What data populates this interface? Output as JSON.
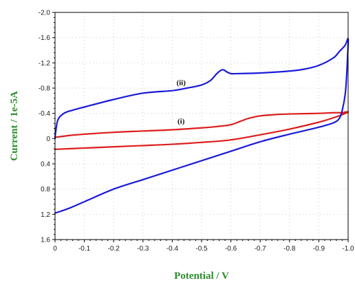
{
  "chart_data": {
    "type": "line",
    "xlabel": "Potential / V",
    "ylabel": "Current / 1e-5A",
    "xlim": [
      0,
      -1.0
    ],
    "ylim": [
      1.6,
      -2.0
    ],
    "x_ticks": [
      "0",
      "-0.1",
      "-0.2",
      "-0.3",
      "-0.4",
      "-0.5",
      "-0.6",
      "-0.7",
      "-0.8",
      "-0.9",
      "-1.0"
    ],
    "y_ticks": [
      "-2.0",
      "-1.6",
      "-1.2",
      "-0.8",
      "-0.4",
      "0",
      "0.4",
      "0.8",
      "1.2",
      "1.6"
    ],
    "grid": true,
    "series": [
      {
        "name": "(i)",
        "color": "#dd1c1c",
        "x": [
          0,
          -0.05,
          -0.1,
          -0.2,
          -0.3,
          -0.4,
          -0.5,
          -0.55,
          -0.6,
          -0.63,
          -0.66,
          -0.7,
          -0.75,
          -0.8,
          -0.9,
          -0.95,
          -0.98,
          -0.99,
          -1.0,
          -0.98,
          -0.95,
          -0.9,
          -0.8,
          -0.7,
          -0.6,
          -0.5,
          -0.4,
          -0.3,
          -0.2,
          -0.1,
          0
        ],
        "y": [
          -0.02,
          -0.05,
          -0.07,
          -0.1,
          -0.12,
          -0.14,
          -0.17,
          -0.19,
          -0.22,
          -0.27,
          -0.32,
          -0.36,
          -0.38,
          -0.39,
          -0.4,
          -0.41,
          -0.41,
          -0.42,
          -0.42,
          -0.38,
          -0.33,
          -0.26,
          -0.15,
          -0.06,
          0.02,
          0.06,
          0.09,
          0.11,
          0.13,
          0.15,
          0.17
        ]
      },
      {
        "name": "(ii)",
        "color": "#1a1adb",
        "x": [
          0,
          -0.002,
          -0.01,
          -0.03,
          -0.06,
          -0.1,
          -0.2,
          -0.3,
          -0.4,
          -0.45,
          -0.5,
          -0.53,
          -0.55,
          -0.565,
          -0.575,
          -0.585,
          -0.6,
          -0.62,
          -0.7,
          -0.8,
          -0.85,
          -0.9,
          -0.95,
          -0.97,
          -0.99,
          -1.0,
          -0.998,
          -0.995,
          -0.99,
          -0.98,
          -0.97,
          -0.95,
          -0.9,
          -0.8,
          -0.7,
          -0.6,
          -0.5,
          -0.4,
          -0.3,
          -0.2,
          -0.1,
          -0.05,
          -0.02,
          0
        ],
        "y": [
          0.0,
          -0.1,
          -0.3,
          -0.4,
          -0.45,
          -0.5,
          -0.62,
          -0.72,
          -0.76,
          -0.8,
          -0.85,
          -0.92,
          -1.02,
          -1.08,
          -1.09,
          -1.06,
          -1.03,
          -1.03,
          -1.04,
          -1.07,
          -1.1,
          -1.16,
          -1.28,
          -1.38,
          -1.48,
          -1.58,
          -1.3,
          -1.0,
          -0.7,
          -0.45,
          -0.32,
          -0.25,
          -0.18,
          -0.07,
          0.05,
          0.2,
          0.35,
          0.5,
          0.65,
          0.8,
          1.0,
          1.1,
          1.15,
          1.18
        ]
      }
    ],
    "annotations": [
      {
        "text": "(i)",
        "x": -0.43,
        "y": -0.24
      },
      {
        "text": "(ii)",
        "x": -0.43,
        "y": -0.85
      }
    ]
  }
}
